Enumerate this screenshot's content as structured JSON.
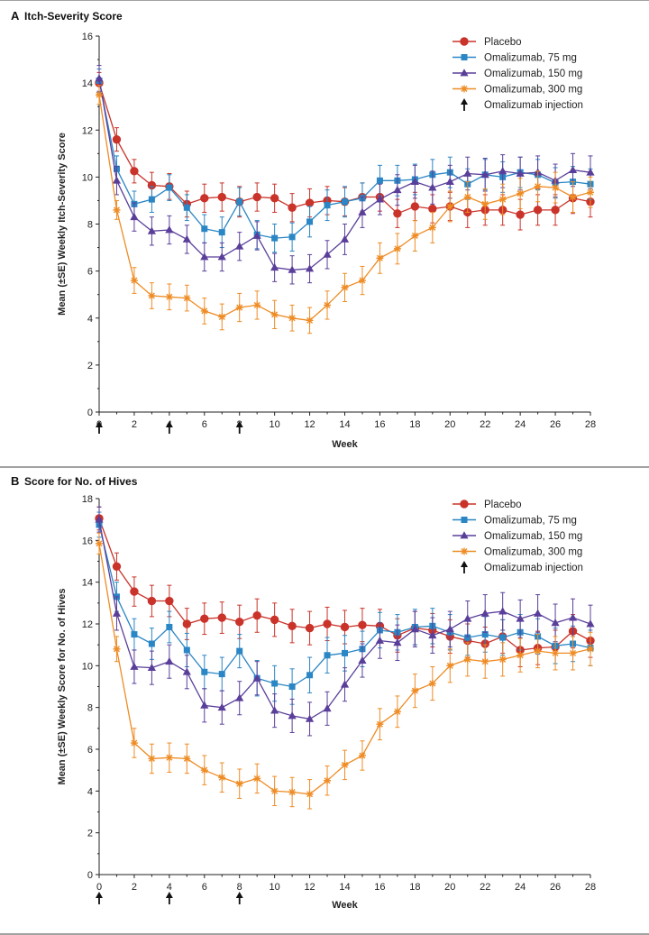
{
  "figure": {
    "arrow_label": "Omalizumab injection",
    "arrow_weeks": [
      0,
      4,
      8
    ]
  },
  "chart_data": [
    {
      "type": "line",
      "panel_letter": "A",
      "title": "Itch-Severity Score",
      "xlabel": "Week",
      "ylabel": "Mean (±SE) Weekly Itch-Severity Score",
      "xlim": [
        0,
        28
      ],
      "ylim": [
        0,
        16
      ],
      "x_ticks": [
        0,
        2,
        4,
        6,
        8,
        10,
        12,
        14,
        16,
        18,
        20,
        22,
        24,
        26,
        28
      ],
      "y_ticks": [
        0,
        2,
        4,
        6,
        8,
        10,
        12,
        14,
        16
      ],
      "x": [
        0,
        1,
        2,
        3,
        4,
        5,
        6,
        7,
        8,
        9,
        10,
        11,
        12,
        13,
        14,
        15,
        16,
        17,
        18,
        19,
        20,
        21,
        22,
        23,
        24,
        25,
        26,
        27,
        28
      ],
      "series": [
        {
          "name": "Placebo",
          "color": "#c9332a",
          "marker": "circle",
          "values": [
            14.0,
            11.6,
            10.25,
            9.65,
            9.6,
            8.85,
            9.1,
            9.15,
            8.95,
            9.15,
            9.1,
            8.7,
            8.9,
            9.0,
            8.95,
            9.15,
            9.15,
            8.45,
            8.75,
            8.65,
            8.75,
            8.5,
            8.6,
            8.6,
            8.4,
            8.6,
            8.6,
            9.1,
            8.95
          ],
          "se": [
            0.45,
            0.5,
            0.5,
            0.55,
            0.55,
            0.55,
            0.6,
            0.6,
            0.65,
            0.6,
            0.6,
            0.6,
            0.6,
            0.6,
            0.6,
            0.6,
            0.6,
            0.6,
            0.6,
            0.6,
            0.6,
            0.65,
            0.65,
            0.65,
            0.65,
            0.65,
            0.65,
            0.65,
            0.65
          ]
        },
        {
          "name": "Omalizumab, 75 mg",
          "color": "#2a86c4",
          "marker": "square",
          "values": [
            14.1,
            10.35,
            8.85,
            9.05,
            9.55,
            8.7,
            7.8,
            7.65,
            8.95,
            7.55,
            7.4,
            7.45,
            8.1,
            8.8,
            8.95,
            9.1,
            9.85,
            9.85,
            9.9,
            10.1,
            10.2,
            9.7,
            10.1,
            10.0,
            10.2,
            10.1,
            9.75,
            9.8,
            9.7
          ],
          "se": [
            0.5,
            0.55,
            0.55,
            0.55,
            0.55,
            0.55,
            0.6,
            0.65,
            0.6,
            0.6,
            0.6,
            0.6,
            0.65,
            0.65,
            0.65,
            0.65,
            0.65,
            0.65,
            0.65,
            0.65,
            0.65,
            0.65,
            0.65,
            0.65,
            0.65,
            0.65,
            0.65,
            0.65,
            0.65
          ]
        },
        {
          "name": "Omalizumab, 150 mg",
          "color": "#5a3f9a",
          "marker": "triangle",
          "values": [
            14.2,
            9.85,
            8.3,
            7.7,
            7.75,
            7.35,
            6.6,
            6.6,
            7.05,
            7.5,
            6.15,
            6.05,
            6.1,
            6.7,
            7.35,
            8.5,
            9.05,
            9.45,
            9.8,
            9.55,
            9.8,
            10.15,
            10.1,
            10.25,
            10.15,
            10.2,
            9.85,
            10.3,
            10.2
          ],
          "se": [
            0.55,
            0.6,
            0.6,
            0.6,
            0.6,
            0.6,
            0.6,
            0.6,
            0.6,
            0.6,
            0.6,
            0.6,
            0.6,
            0.6,
            0.65,
            0.65,
            0.65,
            0.65,
            0.7,
            0.7,
            0.7,
            0.7,
            0.7,
            0.7,
            0.7,
            0.7,
            0.7,
            0.7,
            0.7
          ]
        },
        {
          "name": "Omalizumab, 300 mg",
          "color": "#ee8c25",
          "marker": "star",
          "values": [
            13.5,
            8.6,
            5.6,
            4.95,
            4.9,
            4.85,
            4.3,
            4.05,
            4.45,
            4.55,
            4.15,
            4.0,
            3.9,
            4.55,
            5.3,
            5.6,
            6.55,
            6.95,
            7.5,
            7.85,
            8.75,
            9.15,
            8.85,
            9.05,
            9.3,
            9.6,
            9.55,
            9.15,
            9.35
          ],
          "se": [
            0.4,
            0.4,
            0.55,
            0.55,
            0.55,
            0.55,
            0.55,
            0.55,
            0.6,
            0.6,
            0.6,
            0.55,
            0.55,
            0.6,
            0.6,
            0.6,
            0.65,
            0.65,
            0.65,
            0.65,
            0.65,
            0.65,
            0.65,
            0.65,
            0.65,
            0.65,
            0.65,
            0.65,
            0.65
          ]
        }
      ]
    },
    {
      "type": "line",
      "panel_letter": "B",
      "title": "Score for No. of Hives",
      "xlabel": "Week",
      "ylabel": "Mean (±SE) Weekly Score for No. of Hives",
      "xlim": [
        0,
        28
      ],
      "ylim": [
        0,
        18
      ],
      "x_ticks": [
        0,
        2,
        4,
        6,
        8,
        10,
        12,
        14,
        16,
        18,
        20,
        22,
        24,
        26,
        28
      ],
      "y_ticks": [
        0,
        2,
        4,
        6,
        8,
        10,
        12,
        14,
        16,
        18
      ],
      "x": [
        0,
        1,
        2,
        3,
        4,
        5,
        6,
        7,
        8,
        9,
        10,
        11,
        12,
        13,
        14,
        15,
        16,
        17,
        18,
        19,
        20,
        21,
        22,
        23,
        24,
        25,
        26,
        27,
        28
      ],
      "series": [
        {
          "name": "Placebo",
          "color": "#c9332a",
          "marker": "circle",
          "values": [
            17.05,
            14.75,
            13.55,
            13.1,
            13.1,
            12.0,
            12.25,
            12.3,
            12.1,
            12.4,
            12.2,
            11.9,
            11.8,
            12.0,
            11.85,
            11.95,
            11.9,
            11.45,
            11.8,
            11.7,
            11.4,
            11.2,
            11.05,
            11.4,
            10.75,
            10.85,
            10.9,
            11.65,
            11.2
          ],
          "se": [
            0.55,
            0.65,
            0.7,
            0.75,
            0.75,
            0.75,
            0.75,
            0.75,
            0.8,
            0.8,
            0.8,
            0.8,
            0.8,
            0.8,
            0.8,
            0.8,
            0.8,
            0.8,
            0.8,
            0.8,
            0.8,
            0.8,
            0.8,
            0.8,
            0.8,
            0.8,
            0.8,
            0.8,
            0.8
          ]
        },
        {
          "name": "Omalizumab, 75 mg",
          "color": "#2a86c4",
          "marker": "square",
          "values": [
            16.75,
            13.3,
            11.5,
            11.05,
            11.85,
            10.75,
            9.7,
            9.6,
            10.7,
            9.4,
            9.15,
            9.0,
            9.55,
            10.5,
            10.6,
            10.8,
            11.7,
            11.6,
            11.85,
            11.9,
            11.6,
            11.35,
            11.5,
            11.35,
            11.6,
            11.4,
            10.95,
            11.05,
            10.85
          ],
          "se": [
            0.6,
            0.7,
            0.75,
            0.75,
            0.75,
            0.8,
            0.8,
            0.8,
            0.8,
            0.85,
            0.85,
            0.85,
            0.85,
            0.85,
            0.85,
            0.85,
            0.85,
            0.85,
            0.85,
            0.85,
            0.85,
            0.85,
            0.85,
            0.85,
            0.85,
            0.85,
            0.85,
            0.85,
            0.85
          ]
        },
        {
          "name": "Omalizumab, 150 mg",
          "color": "#5a3f9a",
          "marker": "triangle",
          "values": [
            17.0,
            12.5,
            9.95,
            9.9,
            10.2,
            9.7,
            8.1,
            8.0,
            8.45,
            9.4,
            7.85,
            7.6,
            7.45,
            7.95,
            9.1,
            10.25,
            11.2,
            11.1,
            11.75,
            11.45,
            11.75,
            12.25,
            12.5,
            12.6,
            12.25,
            12.5,
            12.05,
            12.3,
            12.0
          ],
          "se": [
            0.6,
            0.8,
            0.8,
            0.8,
            0.8,
            0.8,
            0.8,
            0.8,
            0.8,
            0.8,
            0.8,
            0.8,
            0.8,
            0.8,
            0.8,
            0.8,
            0.85,
            0.85,
            0.85,
            0.85,
            0.85,
            0.85,
            0.9,
            0.9,
            0.9,
            0.9,
            0.9,
            0.9,
            0.9
          ]
        },
        {
          "name": "Omalizumab, 300 mg",
          "color": "#ee8c25",
          "marker": "star",
          "values": [
            15.85,
            10.8,
            6.3,
            5.55,
            5.6,
            5.55,
            5.0,
            4.65,
            4.35,
            4.6,
            4.0,
            3.95,
            3.85,
            4.5,
            5.25,
            5.7,
            7.2,
            7.8,
            8.8,
            9.15,
            10.0,
            10.3,
            10.2,
            10.3,
            10.5,
            10.7,
            10.6,
            10.6,
            10.8
          ],
          "se": [
            0.5,
            0.6,
            0.7,
            0.7,
            0.7,
            0.7,
            0.7,
            0.7,
            0.7,
            0.7,
            0.7,
            0.7,
            0.7,
            0.7,
            0.7,
            0.7,
            0.75,
            0.75,
            0.8,
            0.8,
            0.8,
            0.8,
            0.8,
            0.8,
            0.8,
            0.8,
            0.8,
            0.8,
            0.8
          ]
        }
      ]
    }
  ]
}
